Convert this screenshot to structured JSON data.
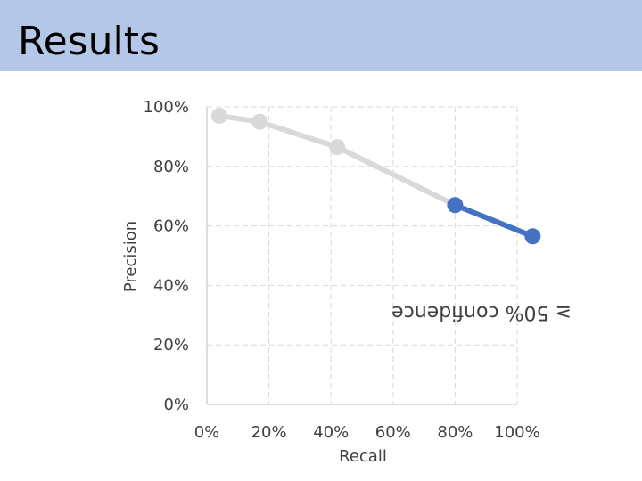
{
  "slide": {
    "title": "Results",
    "accent_color": "#b4c7e7"
  },
  "chart_data": {
    "type": "line",
    "title": "",
    "xlabel": "Recall",
    "ylabel": "Precision",
    "x_ticks": [
      "0%",
      "20%",
      "40%",
      "60%",
      "80%",
      "100%"
    ],
    "y_ticks": [
      "0%",
      "20%",
      "40%",
      "60%",
      "80%",
      "100%"
    ],
    "xlim": [
      0,
      100
    ],
    "ylim": [
      0,
      100
    ],
    "grid": true,
    "annotation": "≥ 50% confidence",
    "series": [
      {
        "color": "#d9d9d9",
        "x": [
          4,
          17,
          42,
          80
        ],
        "y": [
          97,
          95,
          86.5,
          67
        ]
      },
      {
        "color": "#4472c4",
        "x": [
          80,
          105
        ],
        "y": [
          67,
          56.5
        ]
      }
    ]
  }
}
